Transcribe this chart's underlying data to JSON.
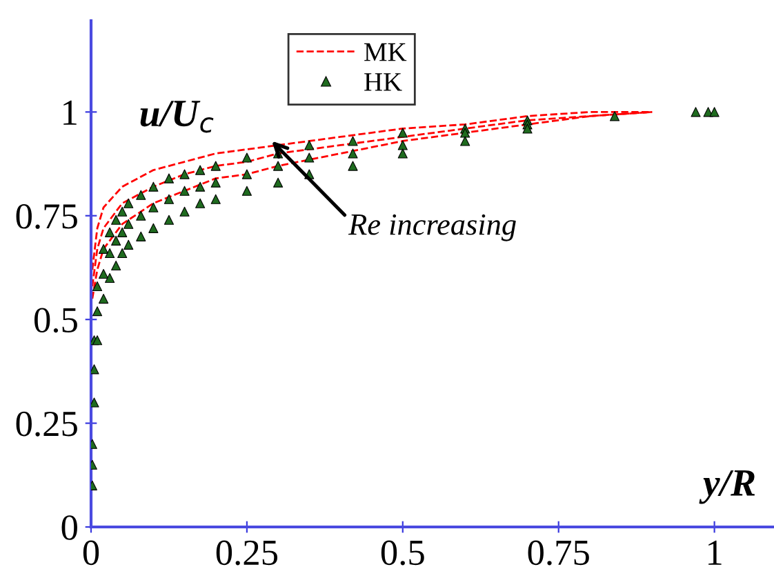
{
  "chart_data": {
    "type": "line",
    "xlabel": "y/R",
    "ylabel": "u/U$_{c}$",
    "xlim": [
      0,
      1.1
    ],
    "ylim": [
      0,
      1.22
    ],
    "xticks": [
      0,
      0.25,
      0.5,
      0.75,
      1
    ],
    "yticks": [
      0,
      0.25,
      0.5,
      0.75,
      1
    ],
    "grid": false,
    "legend": "top",
    "annotations": [
      {
        "text": "Re increasing",
        "x": 0.29,
        "y": 0.93
      }
    ],
    "series": [
      {
        "name": "MK",
        "line_style": "dashed",
        "marker": "none",
        "color": "#ff0000",
        "x": [
          0.002,
          0.01,
          0.02,
          0.05,
          0.1,
          0.15,
          0.2,
          0.25,
          0.3,
          0.4,
          0.5,
          0.6,
          0.7,
          0.8,
          0.9
        ],
        "values": [
          0.62,
          0.72,
          0.77,
          0.82,
          0.86,
          0.88,
          0.9,
          0.91,
          0.92,
          0.94,
          0.96,
          0.97,
          0.99,
          1.0,
          1.0
        ]
      },
      {
        "line_style": "dashed",
        "marker": "none",
        "color": "#ff0000",
        "x": [
          0.002,
          0.01,
          0.02,
          0.05,
          0.1,
          0.15,
          0.2,
          0.25,
          0.3,
          0.4,
          0.5,
          0.6,
          0.7,
          0.8,
          0.9
        ],
        "values": [
          0.58,
          0.67,
          0.72,
          0.78,
          0.82,
          0.85,
          0.87,
          0.88,
          0.9,
          0.92,
          0.94,
          0.96,
          0.98,
          0.99,
          1.0
        ]
      },
      {
        "line_style": "dashed",
        "marker": "none",
        "color": "#ff0000",
        "x": [
          0.002,
          0.01,
          0.02,
          0.05,
          0.1,
          0.15,
          0.2,
          0.25,
          0.3,
          0.4,
          0.5,
          0.6,
          0.7,
          0.8,
          0.9
        ],
        "values": [
          0.55,
          0.62,
          0.67,
          0.73,
          0.78,
          0.81,
          0.84,
          0.85,
          0.87,
          0.9,
          0.93,
          0.95,
          0.97,
          0.99,
          1.0
        ]
      },
      {
        "name": "HK",
        "type": "scatter",
        "marker": "triangle",
        "color": "#1f6b1f",
        "x": [
          0.002,
          0.005,
          0.01,
          0.02,
          0.03,
          0.04,
          0.05,
          0.06,
          0.08,
          0.1,
          0.125,
          0.15,
          0.175,
          0.2,
          0.25,
          0.3,
          0.35,
          0.42,
          0.5,
          0.6,
          0.7,
          0.84,
          0.97,
          0.99,
          1.0
        ],
        "values": [
          0.2,
          0.45,
          0.58,
          0.67,
          0.71,
          0.74,
          0.76,
          0.78,
          0.8,
          0.82,
          0.84,
          0.85,
          0.86,
          0.87,
          0.89,
          0.9,
          0.92,
          0.93,
          0.95,
          0.96,
          0.98,
          0.99,
          1.0,
          1.0,
          1.0
        ]
      },
      {
        "type": "scatter",
        "marker": "triangle",
        "color": "#1f6b1f",
        "x": [
          0.002,
          0.005,
          0.01,
          0.02,
          0.03,
          0.04,
          0.05,
          0.06,
          0.08,
          0.1,
          0.125,
          0.15,
          0.175,
          0.2,
          0.25,
          0.3,
          0.35,
          0.42,
          0.5,
          0.6,
          0.7
        ],
        "values": [
          0.15,
          0.38,
          0.52,
          0.61,
          0.66,
          0.69,
          0.71,
          0.73,
          0.75,
          0.77,
          0.79,
          0.81,
          0.82,
          0.83,
          0.85,
          0.87,
          0.89,
          0.9,
          0.92,
          0.95,
          0.97
        ]
      },
      {
        "type": "scatter",
        "marker": "triangle",
        "color": "#1f6b1f",
        "x": [
          0.002,
          0.005,
          0.01,
          0.02,
          0.03,
          0.04,
          0.05,
          0.06,
          0.08,
          0.1,
          0.125,
          0.15,
          0.175,
          0.2,
          0.25,
          0.3,
          0.35,
          0.42,
          0.5,
          0.6,
          0.7
        ],
        "values": [
          0.1,
          0.3,
          0.45,
          0.55,
          0.6,
          0.63,
          0.66,
          0.68,
          0.7,
          0.72,
          0.74,
          0.76,
          0.78,
          0.79,
          0.81,
          0.83,
          0.85,
          0.87,
          0.9,
          0.93,
          0.96
        ]
      }
    ]
  }
}
